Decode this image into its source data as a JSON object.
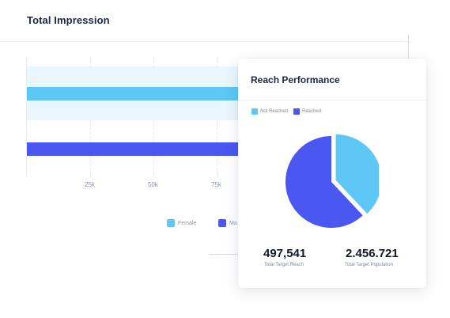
{
  "impression": {
    "title": "Total Impression",
    "ticks": [
      "25k",
      "50k",
      "75k"
    ],
    "legend": [
      {
        "label": "Female",
        "color": "#5ec7f5"
      },
      {
        "label": "Ma",
        "color": "#4a57f0"
      }
    ]
  },
  "reach": {
    "title": "Reach Performance",
    "legend": [
      {
        "label": "Not Reached",
        "color": "#5ec7f5"
      },
      {
        "label": "Reached",
        "color": "#4a57f0"
      }
    ],
    "stats": [
      {
        "value": "497,541",
        "label": "Total Target Reach"
      },
      {
        "value": "2.456.721",
        "label": "Total Target Population"
      }
    ]
  },
  "chart_data": [
    {
      "type": "bar",
      "title": "Total Impression",
      "orientation": "horizontal",
      "x_ticks": [
        "25k",
        "50k",
        "75k"
      ],
      "series": [
        {
          "name": "Female",
          "color": "#5ec7f5"
        },
        {
          "name": "Ma",
          "color": "#4a57f0"
        }
      ]
    },
    {
      "type": "pie",
      "title": "Reach Performance",
      "categories": [
        "Not Reached",
        "Reached"
      ],
      "values": [
        38,
        62
      ],
      "colors": [
        "#5ec7f5",
        "#4a57f0"
      ],
      "legend": "top-left"
    }
  ]
}
